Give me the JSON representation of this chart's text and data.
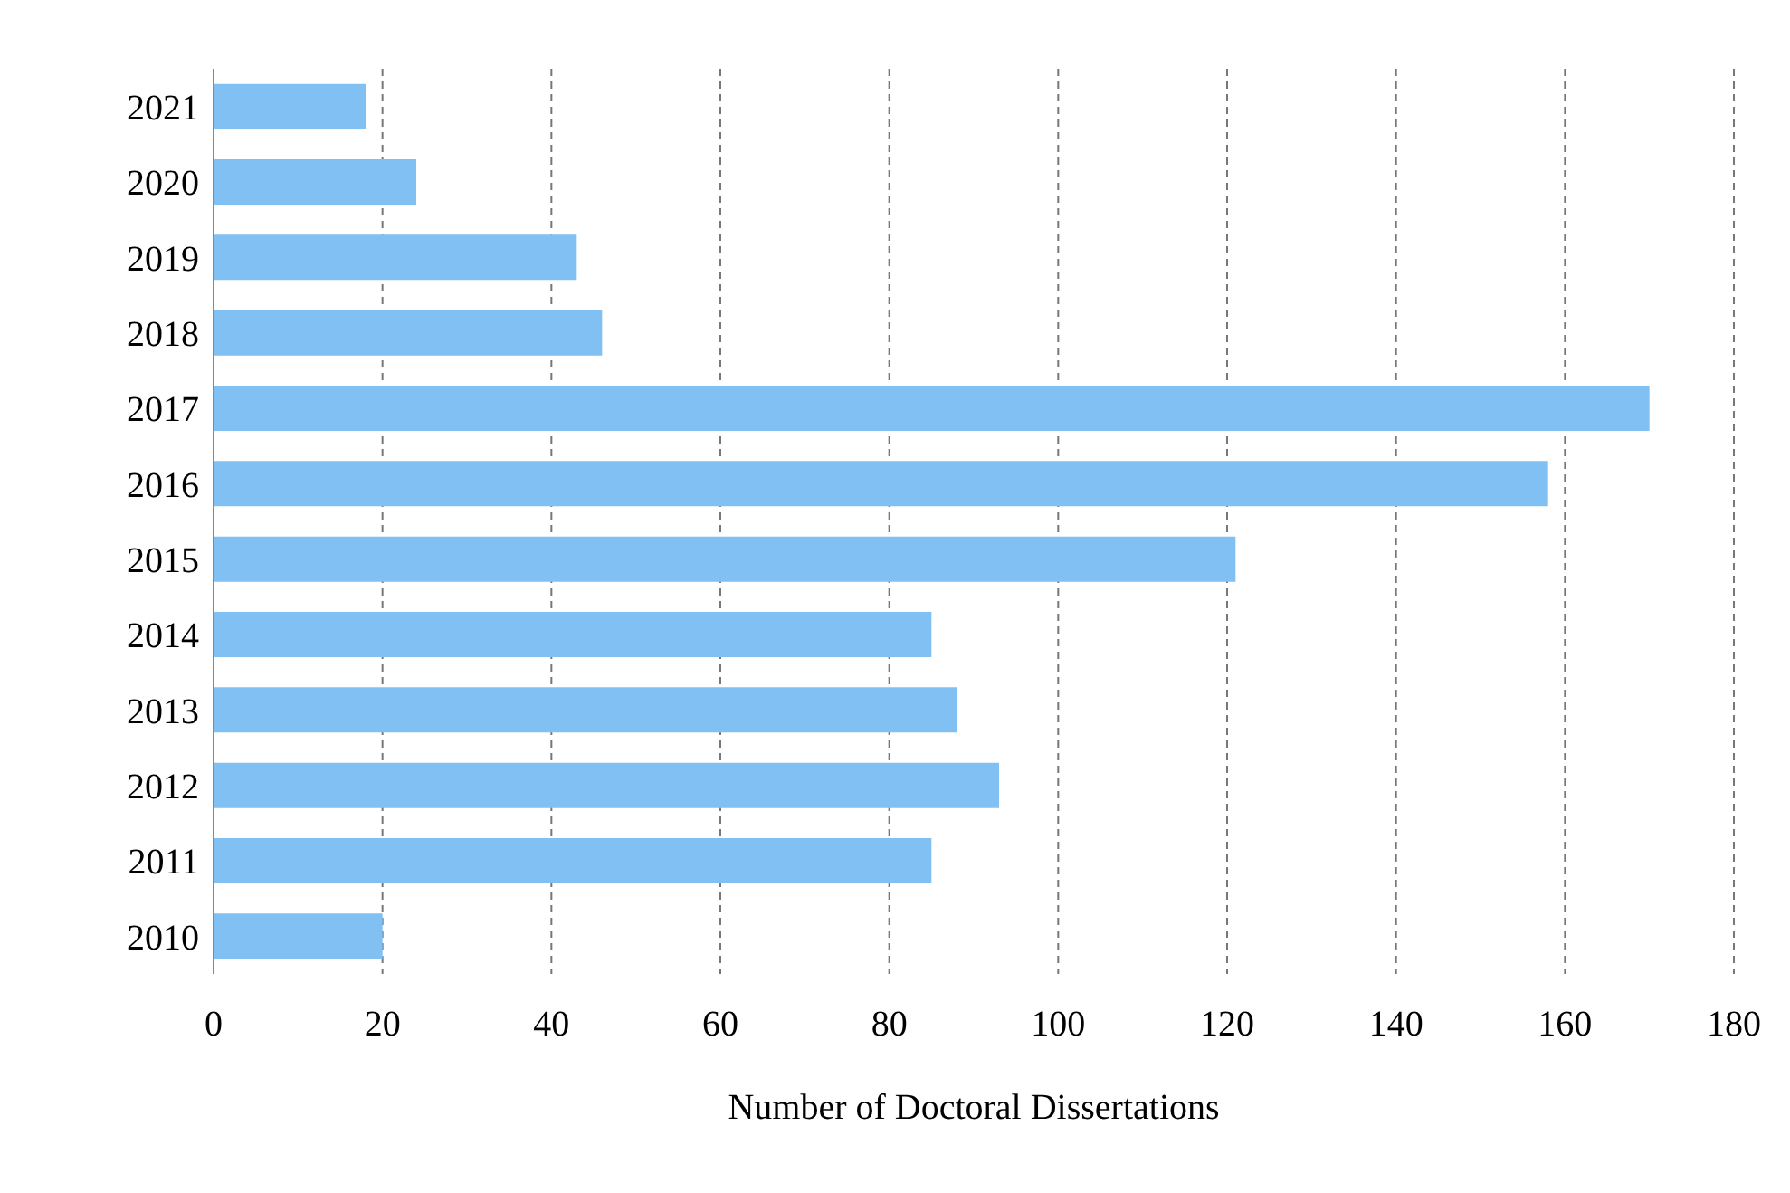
{
  "chart_data": {
    "type": "bar",
    "orientation": "horizontal",
    "xlabel": "Number of Doctoral Dissertations",
    "categories": [
      "2021",
      "2020",
      "2019",
      "2018",
      "2017",
      "2016",
      "2015",
      "2014",
      "2013",
      "2012",
      "2011",
      "2010"
    ],
    "values": [
      18,
      24,
      43,
      46,
      170,
      158,
      121,
      85,
      88,
      93,
      85,
      20
    ],
    "color": "#80c0f2",
    "xlim": [
      0,
      180
    ],
    "xticks": [
      0,
      20,
      40,
      60,
      80,
      100,
      120,
      140,
      160,
      180
    ],
    "grid": "x",
    "legend": false
  }
}
